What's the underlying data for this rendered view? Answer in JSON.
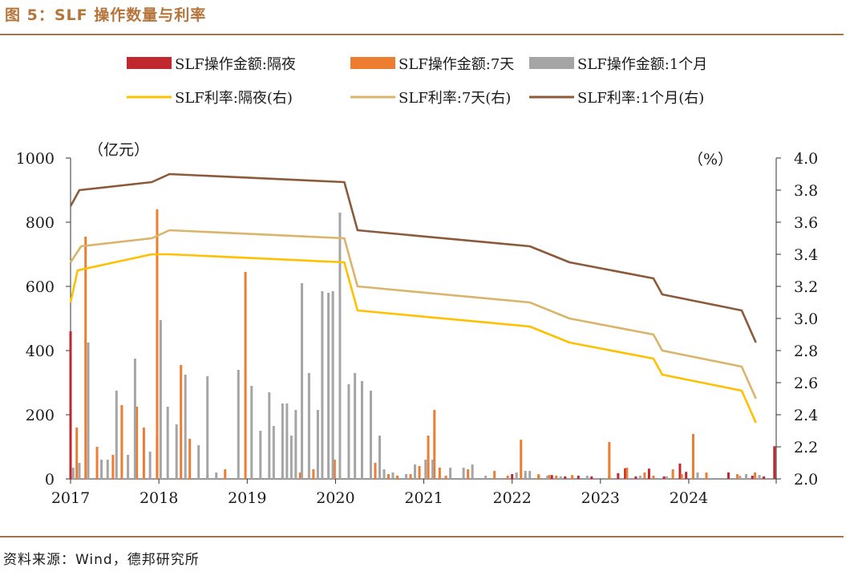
{
  "title": "图 5：SLF 操作数量与利率",
  "source": "资料来源：Wind，德邦研究所",
  "colors": {
    "on": "#c0282f",
    "d7": "#ed7d31",
    "m1": "#a5a5a5",
    "r_on": "#ffc000",
    "r_7d": "#d9b46a",
    "r_1m": "#8b5a3a"
  },
  "chart_data": {
    "type": "bar+line",
    "title": "SLF 操作数量与利率",
    "left_axis": {
      "label": "（亿元）",
      "min": 0,
      "max": 1000,
      "ticks": [
        0,
        200,
        400,
        600,
        800,
        1000
      ]
    },
    "right_axis": {
      "label": "（%）",
      "min": 2.0,
      "max": 4.0,
      "ticks": [
        "2.0",
        "2.2",
        "2.4",
        "2.6",
        "2.8",
        "3.0",
        "3.2",
        "3.4",
        "3.6",
        "3.8",
        "4.0"
      ]
    },
    "x_axis": {
      "start_year": 2017,
      "end_year": 2024.99,
      "labels": [
        "2017",
        "2018",
        "2019",
        "2020",
        "2021",
        "2022",
        "2023",
        "2024"
      ]
    },
    "legend": [
      "SLF操作金额:隔夜",
      "SLF操作金额:7天",
      "SLF操作金额:1个月",
      "SLF利率:隔夜(右)",
      "SLF利率:7天(右)",
      "SLF利率:1个月(右)"
    ],
    "bar_series": [
      {
        "name": "SLF操作金额:隔夜",
        "key": "on",
        "points": [
          [
            2017.0,
            460
          ],
          [
            2017.98,
            130
          ],
          [
            2022.0,
            15
          ],
          [
            2022.15,
            8
          ],
          [
            2022.3,
            10
          ],
          [
            2022.45,
            12
          ],
          [
            2022.6,
            8
          ],
          [
            2022.75,
            10
          ],
          [
            2022.9,
            8
          ],
          [
            2023.1,
            10
          ],
          [
            2023.2,
            18
          ],
          [
            2023.28,
            33
          ],
          [
            2023.4,
            8
          ],
          [
            2023.55,
            32
          ],
          [
            2023.72,
            8
          ],
          [
            2023.9,
            48
          ],
          [
            2023.97,
            22
          ],
          [
            2024.2,
            8
          ],
          [
            2024.45,
            20
          ],
          [
            2024.72,
            10
          ],
          [
            2024.85,
            8
          ],
          [
            2024.97,
            102
          ]
        ]
      },
      {
        "name": "SLF操作金额:7天",
        "key": "d7",
        "points": [
          [
            2017.07,
            160
          ],
          [
            2017.17,
            755
          ],
          [
            2017.3,
            100
          ],
          [
            2017.48,
            75
          ],
          [
            2017.58,
            230
          ],
          [
            2017.75,
            225
          ],
          [
            2017.83,
            160
          ],
          [
            2017.98,
            840
          ],
          [
            2018.25,
            355
          ],
          [
            2018.35,
            125
          ],
          [
            2018.55,
            10
          ],
          [
            2018.75,
            30
          ],
          [
            2018.98,
            645
          ],
          [
            2019.4,
            10
          ],
          [
            2019.6,
            20
          ],
          [
            2019.75,
            30
          ],
          [
            2019.99,
            60
          ],
          [
            2020.45,
            50
          ],
          [
            2020.6,
            15
          ],
          [
            2020.7,
            10
          ],
          [
            2020.85,
            15
          ],
          [
            2020.95,
            40
          ],
          [
            2021.05,
            135
          ],
          [
            2021.12,
            215
          ],
          [
            2021.18,
            35
          ],
          [
            2021.25,
            10
          ],
          [
            2021.5,
            30
          ],
          [
            2021.8,
            25
          ],
          [
            2021.95,
            10
          ],
          [
            2022.1,
            122
          ],
          [
            2022.3,
            15
          ],
          [
            2022.42,
            12
          ],
          [
            2022.5,
            10
          ],
          [
            2022.68,
            12
          ],
          [
            2023.1,
            115
          ],
          [
            2023.3,
            35
          ],
          [
            2023.5,
            20
          ],
          [
            2023.6,
            10
          ],
          [
            2023.82,
            30
          ],
          [
            2023.92,
            15
          ],
          [
            2024.05,
            140
          ],
          [
            2024.2,
            20
          ],
          [
            2024.55,
            15
          ],
          [
            2024.75,
            20
          ]
        ]
      },
      {
        "name": "SLF操作金额:1个月",
        "key": "m1",
        "points": [
          [
            2017.03,
            35
          ],
          [
            2017.1,
            50
          ],
          [
            2017.2,
            425
          ],
          [
            2017.35,
            60
          ],
          [
            2017.42,
            60
          ],
          [
            2017.52,
            275
          ],
          [
            2017.65,
            75
          ],
          [
            2017.73,
            375
          ],
          [
            2017.9,
            85
          ],
          [
            2018.02,
            495
          ],
          [
            2018.1,
            225
          ],
          [
            2018.2,
            170
          ],
          [
            2018.3,
            325
          ],
          [
            2018.45,
            105
          ],
          [
            2018.55,
            320
          ],
          [
            2018.65,
            20
          ],
          [
            2018.9,
            340
          ],
          [
            2019.05,
            290
          ],
          [
            2019.15,
            150
          ],
          [
            2019.25,
            270
          ],
          [
            2019.3,
            165
          ],
          [
            2019.4,
            235
          ],
          [
            2019.45,
            235
          ],
          [
            2019.5,
            135
          ],
          [
            2019.55,
            215
          ],
          [
            2019.62,
            610
          ],
          [
            2019.7,
            330
          ],
          [
            2019.8,
            215
          ],
          [
            2019.85,
            585
          ],
          [
            2019.92,
            580
          ],
          [
            2019.97,
            585
          ],
          [
            2020.05,
            830
          ],
          [
            2020.15,
            295
          ],
          [
            2020.22,
            330
          ],
          [
            2020.3,
            305
          ],
          [
            2020.4,
            275
          ],
          [
            2020.5,
            135
          ],
          [
            2020.55,
            30
          ],
          [
            2020.65,
            20
          ],
          [
            2020.8,
            15
          ],
          [
            2020.9,
            45
          ],
          [
            2021.02,
            60
          ],
          [
            2021.1,
            60
          ],
          [
            2021.3,
            35
          ],
          [
            2021.45,
            35
          ],
          [
            2021.55,
            45
          ],
          [
            2021.7,
            10
          ],
          [
            2022.05,
            20
          ],
          [
            2022.15,
            25
          ],
          [
            2022.2,
            25
          ],
          [
            2022.4,
            10
          ],
          [
            2022.55,
            8
          ],
          [
            2022.85,
            10
          ],
          [
            2023.45,
            10
          ],
          [
            2023.75,
            8
          ],
          [
            2024.1,
            20
          ],
          [
            2024.58,
            10
          ],
          [
            2024.65,
            15
          ],
          [
            2024.8,
            12
          ]
        ]
      }
    ],
    "line_series": [
      {
        "name": "SLF利率:隔夜(右)",
        "key": "r_on",
        "points": [
          [
            2017.0,
            3.1
          ],
          [
            2017.08,
            3.3
          ],
          [
            2017.92,
            3.4
          ],
          [
            2018.12,
            3.4
          ],
          [
            2020.1,
            3.35
          ],
          [
            2020.25,
            3.05
          ],
          [
            2022.2,
            2.95
          ],
          [
            2022.65,
            2.85
          ],
          [
            2023.6,
            2.75
          ],
          [
            2023.7,
            2.65
          ],
          [
            2024.6,
            2.55
          ],
          [
            2024.76,
            2.35
          ]
        ]
      },
      {
        "name": "SLF利率:7天(右)",
        "key": "r_7d",
        "points": [
          [
            2017.0,
            3.35
          ],
          [
            2017.12,
            3.45
          ],
          [
            2017.92,
            3.5
          ],
          [
            2018.12,
            3.55
          ],
          [
            2020.1,
            3.5
          ],
          [
            2020.25,
            3.2
          ],
          [
            2022.2,
            3.1
          ],
          [
            2022.65,
            3.0
          ],
          [
            2023.6,
            2.9
          ],
          [
            2023.7,
            2.8
          ],
          [
            2024.6,
            2.7
          ],
          [
            2024.76,
            2.5
          ]
        ]
      },
      {
        "name": "SLF利率:1个月(右)",
        "key": "r_1m",
        "points": [
          [
            2017.0,
            3.7
          ],
          [
            2017.1,
            3.8
          ],
          [
            2017.92,
            3.85
          ],
          [
            2018.12,
            3.9
          ],
          [
            2020.1,
            3.85
          ],
          [
            2020.25,
            3.55
          ],
          [
            2022.2,
            3.45
          ],
          [
            2022.65,
            3.35
          ],
          [
            2023.6,
            3.25
          ],
          [
            2023.7,
            3.15
          ],
          [
            2024.6,
            3.05
          ],
          [
            2024.76,
            2.85
          ]
        ]
      }
    ]
  }
}
